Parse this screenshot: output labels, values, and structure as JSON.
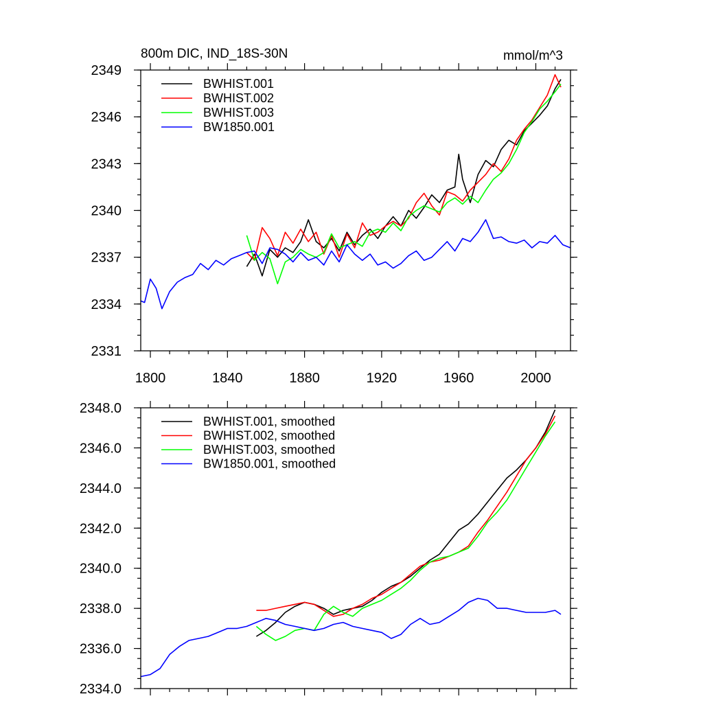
{
  "chart_data": [
    {
      "type": "line",
      "title_left": "800m DIC, IND_18S-30N",
      "title_right": "mmol/m^3",
      "xlim": [
        1795,
        2018
      ],
      "ylim": [
        2331,
        2349
      ],
      "x_ticks": [
        1800,
        1840,
        1880,
        1920,
        1960,
        2000
      ],
      "x_tick_labels": [
        "1800",
        "1840",
        "1880",
        "1920",
        "1960",
        "2000"
      ],
      "y_ticks": [
        2331,
        2334,
        2337,
        2340,
        2343,
        2346,
        2349
      ],
      "y_tick_labels": [
        "2331",
        "2334",
        "2337",
        "2340",
        "2343",
        "2346",
        "2349"
      ],
      "legend_position": "top-left",
      "series": [
        {
          "name": "BWHIST.001",
          "color": "#000000",
          "x": [
            1850,
            1854,
            1858,
            1862,
            1866,
            1870,
            1874,
            1878,
            1882,
            1886,
            1890,
            1894,
            1898,
            1902,
            1906,
            1910,
            1914,
            1918,
            1922,
            1926,
            1930,
            1934,
            1938,
            1942,
            1946,
            1950,
            1954,
            1958,
            1960,
            1962,
            1966,
            1970,
            1974,
            1978,
            1982,
            1986,
            1990,
            1994,
            1998,
            2002,
            2006,
            2010,
            2013
          ],
          "values": [
            2336.4,
            2337.2,
            2335.8,
            2337.5,
            2337.0,
            2337.6,
            2337.3,
            2338.0,
            2339.4,
            2338.0,
            2337.6,
            2338.2,
            2337.4,
            2338.6,
            2337.8,
            2338.4,
            2338.8,
            2338.2,
            2339.0,
            2339.6,
            2339.0,
            2340.0,
            2339.5,
            2340.2,
            2341.0,
            2340.5,
            2341.3,
            2341.5,
            2343.6,
            2342.0,
            2340.5,
            2342.3,
            2343.2,
            2342.8,
            2343.9,
            2344.5,
            2344.2,
            2345.1,
            2345.6,
            2346.1,
            2346.7,
            2347.8,
            2348.4
          ]
        },
        {
          "name": "BWHIST.002",
          "color": "#ff0000",
          "x": [
            1850,
            1854,
            1858,
            1862,
            1866,
            1870,
            1874,
            1878,
            1882,
            1886,
            1890,
            1894,
            1898,
            1902,
            1906,
            1910,
            1914,
            1918,
            1922,
            1926,
            1930,
            1934,
            1938,
            1942,
            1946,
            1950,
            1954,
            1958,
            1962,
            1966,
            1970,
            1974,
            1978,
            1982,
            1986,
            1990,
            1994,
            1998,
            2002,
            2006,
            2010,
            2013
          ],
          "values": [
            2337.3,
            2336.8,
            2338.9,
            2338.2,
            2337.1,
            2338.6,
            2337.9,
            2338.8,
            2338.0,
            2338.6,
            2337.2,
            2338.4,
            2337.0,
            2338.5,
            2337.6,
            2339.2,
            2338.4,
            2338.6,
            2339.0,
            2339.3,
            2339.0,
            2339.5,
            2340.5,
            2341.1,
            2340.3,
            2339.7,
            2341.2,
            2341.0,
            2340.6,
            2341.3,
            2341.8,
            2342.3,
            2343.0,
            2342.5,
            2343.3,
            2344.5,
            2345.2,
            2345.8,
            2346.6,
            2347.4,
            2348.7,
            2347.9
          ]
        },
        {
          "name": "BWHIST.003",
          "color": "#00ff00",
          "x": [
            1850,
            1854,
            1858,
            1862,
            1866,
            1870,
            1874,
            1878,
            1882,
            1886,
            1890,
            1894,
            1898,
            1902,
            1906,
            1910,
            1914,
            1918,
            1922,
            1926,
            1930,
            1934,
            1938,
            1942,
            1946,
            1950,
            1954,
            1958,
            1962,
            1966,
            1970,
            1974,
            1978,
            1982,
            1986,
            1990,
            1994,
            1998,
            2002,
            2006,
            2010,
            2013
          ],
          "values": [
            2338.4,
            2336.8,
            2337.3,
            2336.9,
            2335.3,
            2336.7,
            2337.0,
            2337.5,
            2337.2,
            2337.0,
            2337.3,
            2338.5,
            2337.6,
            2337.8,
            2338.0,
            2337.7,
            2338.6,
            2338.8,
            2338.6,
            2339.2,
            2338.7,
            2339.6,
            2340.0,
            2340.3,
            2340.1,
            2339.9,
            2340.5,
            2340.8,
            2340.4,
            2340.9,
            2340.5,
            2341.3,
            2342.0,
            2342.4,
            2343.0,
            2343.9,
            2345.0,
            2345.7,
            2346.5,
            2347.0,
            2347.6,
            2348.1
          ]
        },
        {
          "name": "BW1850.001",
          "color": "#0000ff",
          "x": [
            1795,
            1797,
            1800,
            1803,
            1806,
            1810,
            1814,
            1818,
            1822,
            1826,
            1830,
            1834,
            1838,
            1842,
            1846,
            1850,
            1854,
            1858,
            1862,
            1866,
            1870,
            1874,
            1878,
            1882,
            1886,
            1890,
            1894,
            1898,
            1902,
            1906,
            1910,
            1914,
            1918,
            1922,
            1926,
            1930,
            1934,
            1938,
            1942,
            1946,
            1950,
            1954,
            1958,
            1962,
            1966,
            1970,
            1974,
            1978,
            1982,
            1986,
            1990,
            1994,
            1998,
            2002,
            2006,
            2010,
            2014,
            2018
          ],
          "values": [
            2334.2,
            2334.1,
            2335.6,
            2335.0,
            2333.7,
            2334.8,
            2335.4,
            2335.7,
            2335.9,
            2336.6,
            2336.2,
            2336.8,
            2336.5,
            2336.9,
            2337.1,
            2337.3,
            2337.4,
            2336.6,
            2337.6,
            2337.5,
            2337.2,
            2336.7,
            2337.3,
            2336.8,
            2337.0,
            2336.5,
            2337.4,
            2336.7,
            2337.8,
            2337.2,
            2336.8,
            2337.2,
            2336.5,
            2336.7,
            2336.3,
            2336.6,
            2337.1,
            2337.4,
            2336.8,
            2337.0,
            2337.5,
            2338.0,
            2337.4,
            2338.2,
            2338.0,
            2338.6,
            2339.4,
            2338.2,
            2338.3,
            2338.0,
            2337.9,
            2338.1,
            2337.6,
            2338.0,
            2337.9,
            2338.4,
            2337.8,
            2337.6
          ]
        }
      ]
    },
    {
      "type": "line",
      "xlim": [
        1795,
        2018
      ],
      "ylim": [
        2334,
        2348
      ],
      "x_ticks": [
        1800,
        1840,
        1880,
        1920,
        1960,
        2000
      ],
      "y_ticks": [
        2334,
        2336,
        2338,
        2340,
        2342,
        2344,
        2346,
        2348
      ],
      "y_tick_labels": [
        "2334.0",
        "2336.0",
        "2338.0",
        "2340.0",
        "2342.0",
        "2344.0",
        "2346.0",
        "2348.0"
      ],
      "legend_position": "top-left",
      "series": [
        {
          "name": "BWHIST.001, smoothed",
          "color": "#000000",
          "x": [
            1855,
            1860,
            1865,
            1870,
            1875,
            1880,
            1885,
            1890,
            1895,
            1900,
            1905,
            1910,
            1915,
            1920,
            1925,
            1930,
            1935,
            1940,
            1945,
            1950,
            1955,
            1960,
            1965,
            1970,
            1975,
            1980,
            1985,
            1990,
            1995,
            2000,
            2005,
            2010
          ],
          "values": [
            2336.6,
            2336.9,
            2337.3,
            2337.8,
            2338.1,
            2338.3,
            2338.2,
            2338.0,
            2337.7,
            2337.9,
            2338.0,
            2338.1,
            2338.4,
            2338.8,
            2339.1,
            2339.3,
            2339.6,
            2340.0,
            2340.4,
            2340.7,
            2341.3,
            2341.9,
            2342.2,
            2342.7,
            2343.3,
            2343.9,
            2344.5,
            2344.9,
            2345.4,
            2346.0,
            2346.8,
            2347.9
          ]
        },
        {
          "name": "BWHIST.002, smoothed",
          "color": "#ff0000",
          "x": [
            1855,
            1860,
            1865,
            1870,
            1875,
            1880,
            1885,
            1890,
            1895,
            1900,
            1905,
            1910,
            1915,
            1920,
            1925,
            1930,
            1935,
            1940,
            1945,
            1950,
            1955,
            1960,
            1965,
            1970,
            1975,
            1980,
            1985,
            1990,
            1995,
            2000,
            2005,
            2010
          ],
          "values": [
            2337.9,
            2337.9,
            2338.0,
            2338.1,
            2338.2,
            2338.3,
            2338.2,
            2337.9,
            2337.6,
            2337.7,
            2338.0,
            2338.2,
            2338.5,
            2338.7,
            2339.0,
            2339.3,
            2339.7,
            2340.1,
            2340.3,
            2340.4,
            2340.6,
            2340.8,
            2341.1,
            2341.8,
            2342.4,
            2343.1,
            2343.8,
            2344.6,
            2345.4,
            2346.0,
            2346.7,
            2347.6
          ]
        },
        {
          "name": "BWHIST.003, smoothed",
          "color": "#00ff00",
          "x": [
            1855,
            1860,
            1865,
            1870,
            1875,
            1880,
            1885,
            1890,
            1895,
            1900,
            1905,
            1910,
            1915,
            1920,
            1925,
            1930,
            1935,
            1940,
            1945,
            1950,
            1955,
            1960,
            1965,
            1970,
            1975,
            1980,
            1985,
            1990,
            1995,
            2000,
            2005,
            2010
          ],
          "values": [
            2337.1,
            2336.7,
            2336.4,
            2336.6,
            2336.9,
            2337.0,
            2336.9,
            2337.7,
            2338.1,
            2337.8,
            2337.6,
            2338.0,
            2338.2,
            2338.4,
            2338.7,
            2339.0,
            2339.4,
            2339.9,
            2340.3,
            2340.5,
            2340.6,
            2340.8,
            2341.0,
            2341.6,
            2342.3,
            2342.8,
            2343.4,
            2344.2,
            2345.0,
            2345.8,
            2346.6,
            2347.3
          ]
        },
        {
          "name": "BW1850.001, smoothed",
          "color": "#0000ff",
          "x": [
            1795,
            1800,
            1805,
            1810,
            1815,
            1820,
            1825,
            1830,
            1835,
            1840,
            1845,
            1850,
            1855,
            1860,
            1865,
            1870,
            1875,
            1880,
            1885,
            1890,
            1895,
            1900,
            1905,
            1910,
            1915,
            1920,
            1925,
            1930,
            1935,
            1940,
            1945,
            1950,
            1955,
            1960,
            1965,
            1970,
            1975,
            1980,
            1985,
            1990,
            1995,
            2000,
            2005,
            2010,
            2013
          ],
          "values": [
            2334.6,
            2334.7,
            2335.0,
            2335.7,
            2336.1,
            2336.4,
            2336.5,
            2336.6,
            2336.8,
            2337.0,
            2337.0,
            2337.1,
            2337.3,
            2337.5,
            2337.4,
            2337.2,
            2337.1,
            2337.0,
            2336.9,
            2337.0,
            2337.2,
            2337.3,
            2337.1,
            2337.0,
            2336.9,
            2336.8,
            2336.5,
            2336.7,
            2337.2,
            2337.5,
            2337.2,
            2337.3,
            2337.6,
            2337.9,
            2338.3,
            2338.5,
            2338.4,
            2338.0,
            2338.0,
            2337.9,
            2337.8,
            2337.8,
            2337.8,
            2337.9,
            2337.7
          ]
        }
      ]
    }
  ]
}
